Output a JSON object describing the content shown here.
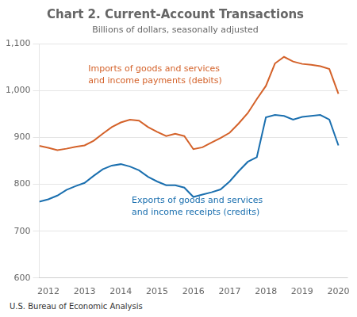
{
  "chart_data": {
    "type": "line",
    "title": "Chart 2. Current-Account Transactions",
    "subtitle": "Billions of dollars, seasonally adjusted",
    "footer": "U.S. Bureau of Economic Analysis",
    "x": [
      2011.75,
      2012.0,
      2012.25,
      2012.5,
      2012.75,
      2013.0,
      2013.25,
      2013.5,
      2013.75,
      2014.0,
      2014.25,
      2014.5,
      2014.75,
      2015.0,
      2015.25,
      2015.5,
      2015.75,
      2016.0,
      2016.25,
      2016.5,
      2016.75,
      2017.0,
      2017.25,
      2017.5,
      2017.75,
      2018.0,
      2018.25,
      2018.5,
      2018.75,
      2019.0,
      2019.25,
      2019.5,
      2019.75,
      2020.0
    ],
    "series": [
      {
        "name": "Imports of goods and services\nand income payments (debits)",
        "color": "#d4622a",
        "values": [
          882,
          878,
          873,
          876,
          880,
          883,
          893,
          908,
          922,
          932,
          938,
          936,
          922,
          912,
          903,
          908,
          903,
          875,
          879,
          889,
          899,
          910,
          930,
          952,
          982,
          1010,
          1058,
          1072,
          1062,
          1057,
          1055,
          1052,
          1046,
          993
        ]
      },
      {
        "name": "Exports of goods and services\nand income receipts (credits)",
        "color": "#1a6faf",
        "values": [
          763,
          768,
          776,
          788,
          796,
          803,
          818,
          832,
          840,
          843,
          838,
          830,
          816,
          806,
          798,
          798,
          793,
          773,
          778,
          783,
          789,
          806,
          828,
          848,
          858,
          943,
          948,
          946,
          938,
          944,
          946,
          948,
          938,
          883
        ]
      }
    ],
    "annotations": [
      {
        "text": "Imports of goods and services\nand income payments (debits)",
        "x": 2013.1,
        "y": 1055,
        "color": "#d4622a"
      },
      {
        "text": "Exports of goods and services\nand income receipts (credits)",
        "x": 2014.3,
        "y": 775,
        "color": "#1a6faf"
      }
    ],
    "xlim": [
      2011.75,
      2020.25
    ],
    "xticks": [
      2012,
      2013,
      2014,
      2015,
      2016,
      2017,
      2018,
      2019,
      2020
    ],
    "ylim": [
      600,
      1100
    ],
    "yticks": [
      600,
      700,
      800,
      900,
      {
        "value": 1000,
        "label": "1,000"
      },
      {
        "value": 1100,
        "label": "1,100"
      }
    ],
    "grid": "y"
  }
}
